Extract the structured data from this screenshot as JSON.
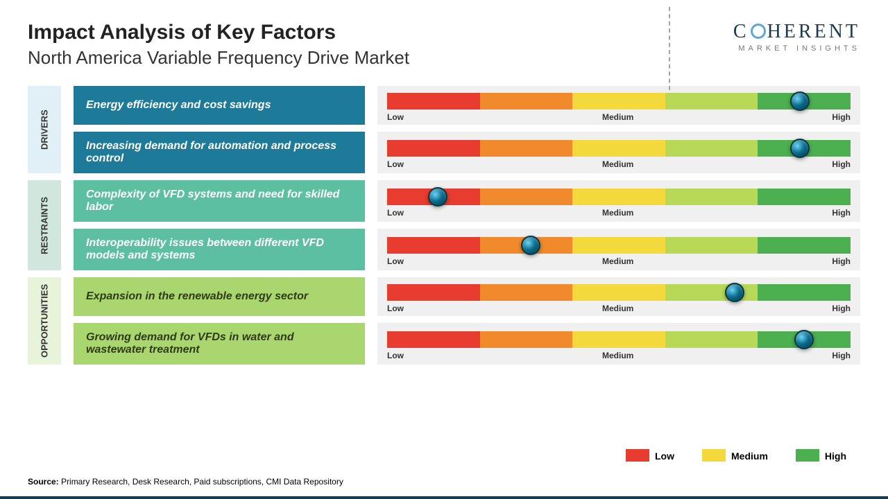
{
  "title": "Impact Analysis of Key Factors",
  "subtitle": "North America Variable Frequency Drive Market",
  "logo": {
    "name_a": "C",
    "name_b": "HERENT",
    "tagline": "MARKET INSIGHTS"
  },
  "scale": {
    "segments": [
      "#e73c2f",
      "#f08a2c",
      "#f4d93c",
      "#b7d957",
      "#4caf50"
    ],
    "labels": {
      "low": "Low",
      "medium": "Medium",
      "high": "High"
    }
  },
  "categories": [
    {
      "key": "DRIVERS",
      "label_bg": "#e1f0f7",
      "box_bg": "#1d7a99",
      "text_color": "#ffffff"
    },
    {
      "key": "RESTRAINTS",
      "label_bg": "#d1e7dd",
      "box_bg": "#5cbfa1",
      "text_color": "#ffffff"
    },
    {
      "key": "OPPORTUNITIES",
      "label_bg": "#e7f4d9",
      "box_bg": "#a9d66f",
      "text_color": "#2e3b14"
    }
  ],
  "factors": [
    {
      "cat": 0,
      "text": "Energy efficiency and cost savings",
      "value_pct": 89
    },
    {
      "cat": 0,
      "text": "Increasing demand for automation and process control",
      "value_pct": 89
    },
    {
      "cat": 1,
      "text": "Complexity of VFD systems and need for skilled labor",
      "value_pct": 11
    },
    {
      "cat": 1,
      "text": "Interoperability issues between different VFD models and systems",
      "value_pct": 31
    },
    {
      "cat": 2,
      "text": "Expansion in the renewable energy sector",
      "value_pct": 75
    },
    {
      "cat": 2,
      "text": "Growing demand for VFDs in water and wastewater treatment",
      "value_pct": 90
    }
  ],
  "legend": [
    {
      "label": "Low",
      "color": "#e73c2f"
    },
    {
      "label": "Medium",
      "color": "#f4d93c"
    },
    {
      "label": "High",
      "color": "#4caf50"
    }
  ],
  "source": {
    "prefix": "Source:",
    "text": " Primary Research, Desk Research, Paid subscriptions, CMI Data Repository"
  }
}
